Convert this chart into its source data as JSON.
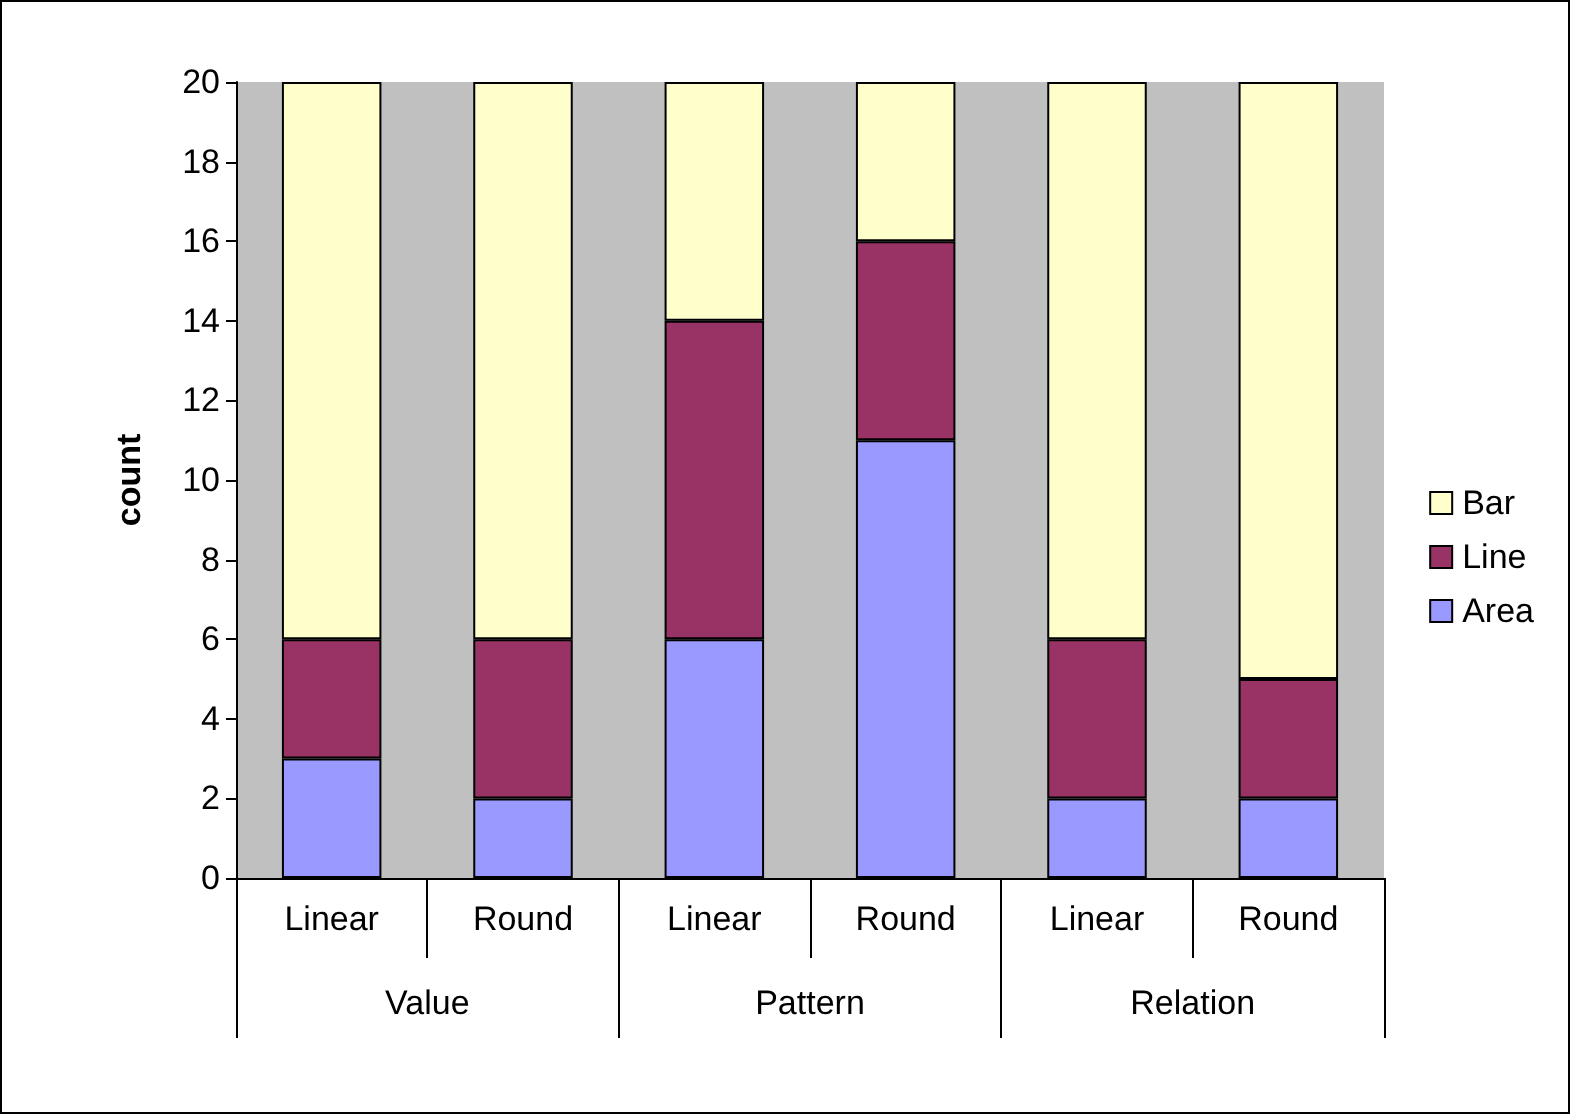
{
  "chart_data": {
    "type": "bar",
    "stacked": true,
    "ylabel": "count",
    "categories": [
      "Linear",
      "Round",
      "Linear",
      "Round",
      "Linear",
      "Round"
    ],
    "annotations": [
      "Value",
      "Pattern",
      "Relation"
    ],
    "series": [
      {
        "name": "Area",
        "color": "#9999ff",
        "values": [
          3,
          2,
          6,
          11,
          2,
          2
        ]
      },
      {
        "name": "Line",
        "color": "#993366",
        "values": [
          3,
          4,
          8,
          5,
          4,
          3
        ]
      },
      {
        "name": "Bar",
        "color": "#ffffcc",
        "values": [
          14,
          14,
          6,
          4,
          14,
          15
        ]
      }
    ],
    "ylim": [
      0,
      20
    ],
    "yticks": [
      0,
      2,
      4,
      6,
      8,
      10,
      12,
      14,
      16,
      18,
      20
    ],
    "grid": false,
    "legend": "right"
  }
}
